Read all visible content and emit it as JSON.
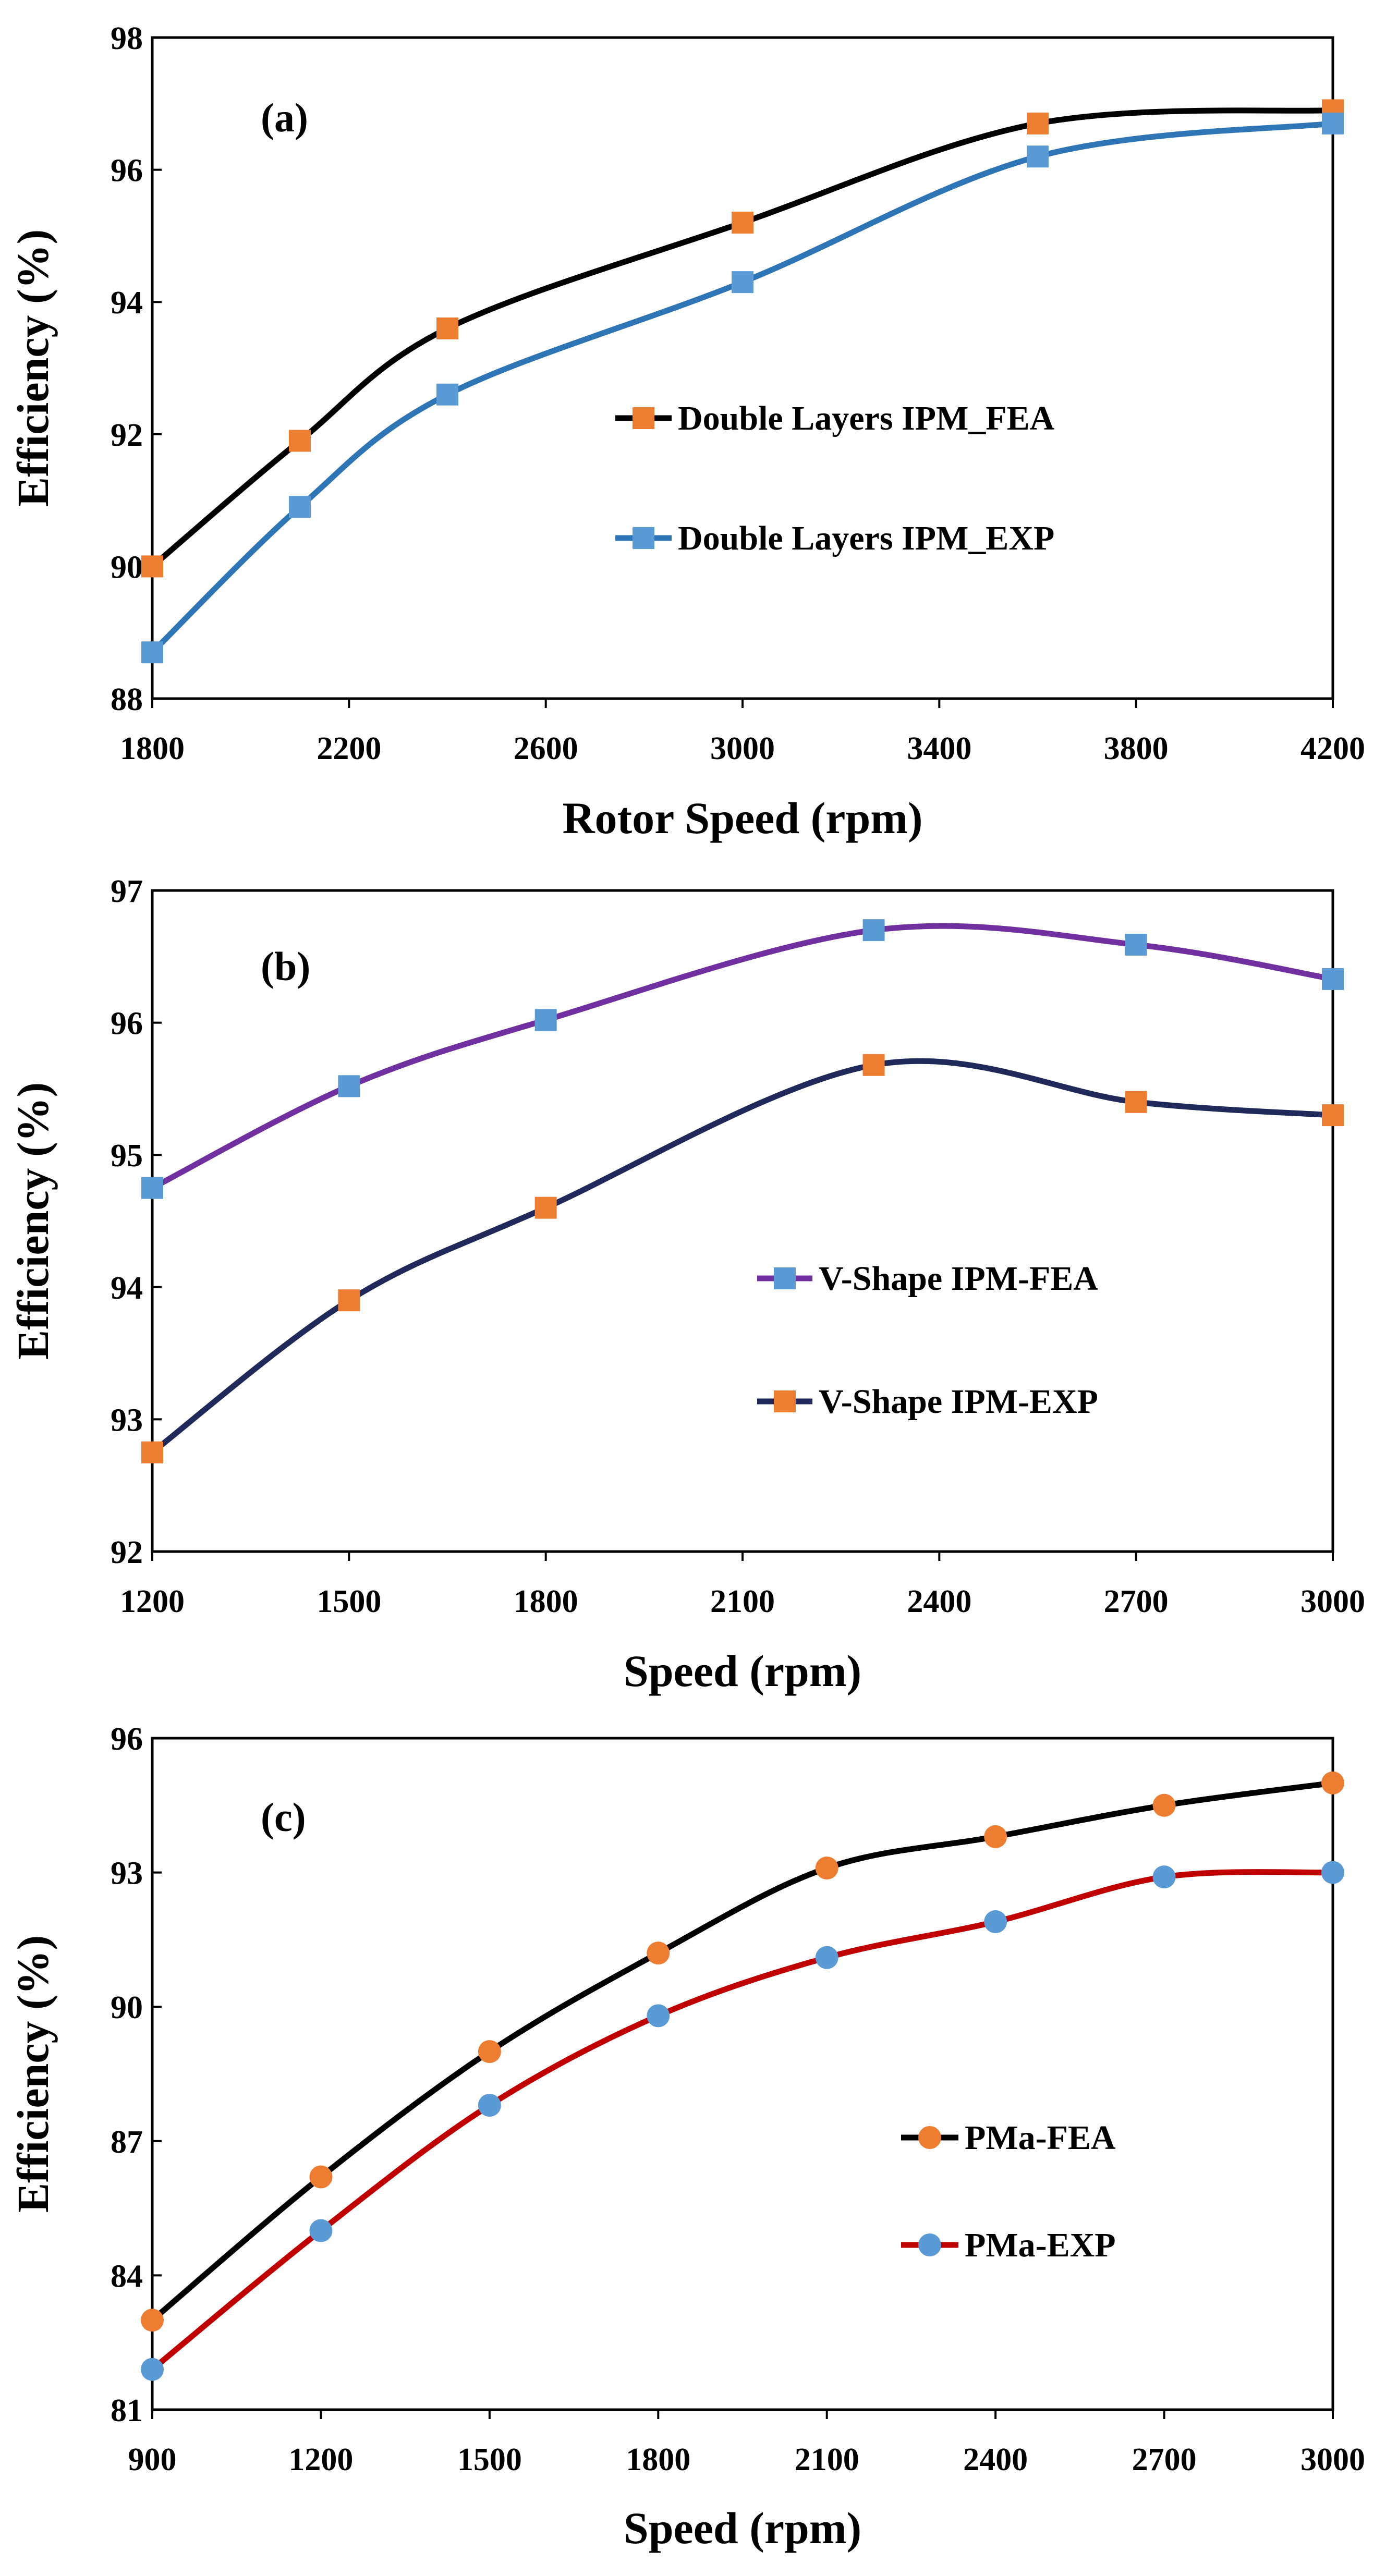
{
  "chart_data": [
    {
      "type": "line",
      "panel": "(a)",
      "xlabel": "Rotor Speed (rpm)",
      "ylabel": "Efficiency (%)",
      "xlim": [
        1800,
        4200
      ],
      "ylim": [
        88,
        98
      ],
      "xticks": [
        1800,
        2200,
        2600,
        3000,
        3400,
        3800,
        4200
      ],
      "yticks": [
        88,
        90,
        92,
        94,
        96,
        98
      ],
      "legend_position": "center-right",
      "x": [
        1800,
        2100,
        2400,
        3000,
        3600,
        4200
      ],
      "series": [
        {
          "name": "Double Layers IPM_FEA",
          "line_color": "#000000",
          "marker": "square",
          "marker_color": "#ED7D31",
          "values": [
            90.0,
            91.9,
            93.6,
            95.2,
            96.7,
            96.9
          ]
        },
        {
          "name": "Double Layers IPM_EXP",
          "line_color": "#2E75B6",
          "marker": "square",
          "marker_color": "#5B9BD5",
          "values": [
            88.7,
            90.9,
            92.6,
            94.3,
            96.2,
            96.7
          ]
        }
      ]
    },
    {
      "type": "line",
      "panel": "(b)",
      "xlabel": "Speed (rpm)",
      "ylabel": "Efficiency (%)",
      "xlim": [
        1200,
        3000
      ],
      "ylim": [
        92,
        97
      ],
      "xticks": [
        1200,
        1500,
        1800,
        2100,
        2400,
        2700,
        3000
      ],
      "yticks": [
        92,
        93,
        94,
        95,
        96,
        97
      ],
      "legend_position": "center-right",
      "x": [
        1200,
        1500,
        1800,
        2300,
        2700,
        3000
      ],
      "series": [
        {
          "name": "V-Shape IPM-FEA",
          "line_color": "#7030A0",
          "marker": "square",
          "marker_color": "#5B9BD5",
          "values": [
            94.75,
            95.52,
            96.02,
            96.7,
            96.59,
            96.33
          ]
        },
        {
          "name": "V-Shape IPM-EXP",
          "line_color": "#1F2A5A",
          "marker": "square",
          "marker_color": "#ED7D31",
          "values": [
            92.75,
            93.9,
            94.6,
            95.68,
            95.4,
            95.3
          ]
        }
      ]
    },
    {
      "type": "line",
      "panel": "(c)",
      "xlabel": "Speed (rpm)",
      "ylabel": "Efficiency (%)",
      "xlim": [
        900,
        3000
      ],
      "ylim": [
        81,
        96
      ],
      "xticks": [
        900,
        1200,
        1500,
        1800,
        2100,
        2400,
        2700,
        3000
      ],
      "yticks": [
        81,
        84,
        87,
        90,
        93,
        96
      ],
      "legend_position": "bottom-right",
      "x": [
        900,
        1200,
        1500,
        1800,
        2100,
        2400,
        2700,
        3000
      ],
      "series": [
        {
          "name": "PMa-FEA",
          "line_color": "#000000",
          "marker": "circle",
          "marker_color": "#ED7D31",
          "values": [
            83.0,
            86.2,
            89.0,
            91.2,
            93.1,
            93.8,
            94.5,
            95.0
          ]
        },
        {
          "name": "PMa-EXP",
          "line_color": "#C00000",
          "marker": "circle",
          "marker_color": "#5B9BD5",
          "values": [
            81.9,
            85.0,
            87.8,
            89.8,
            91.1,
            91.9,
            92.9,
            93.0
          ]
        }
      ]
    }
  ]
}
